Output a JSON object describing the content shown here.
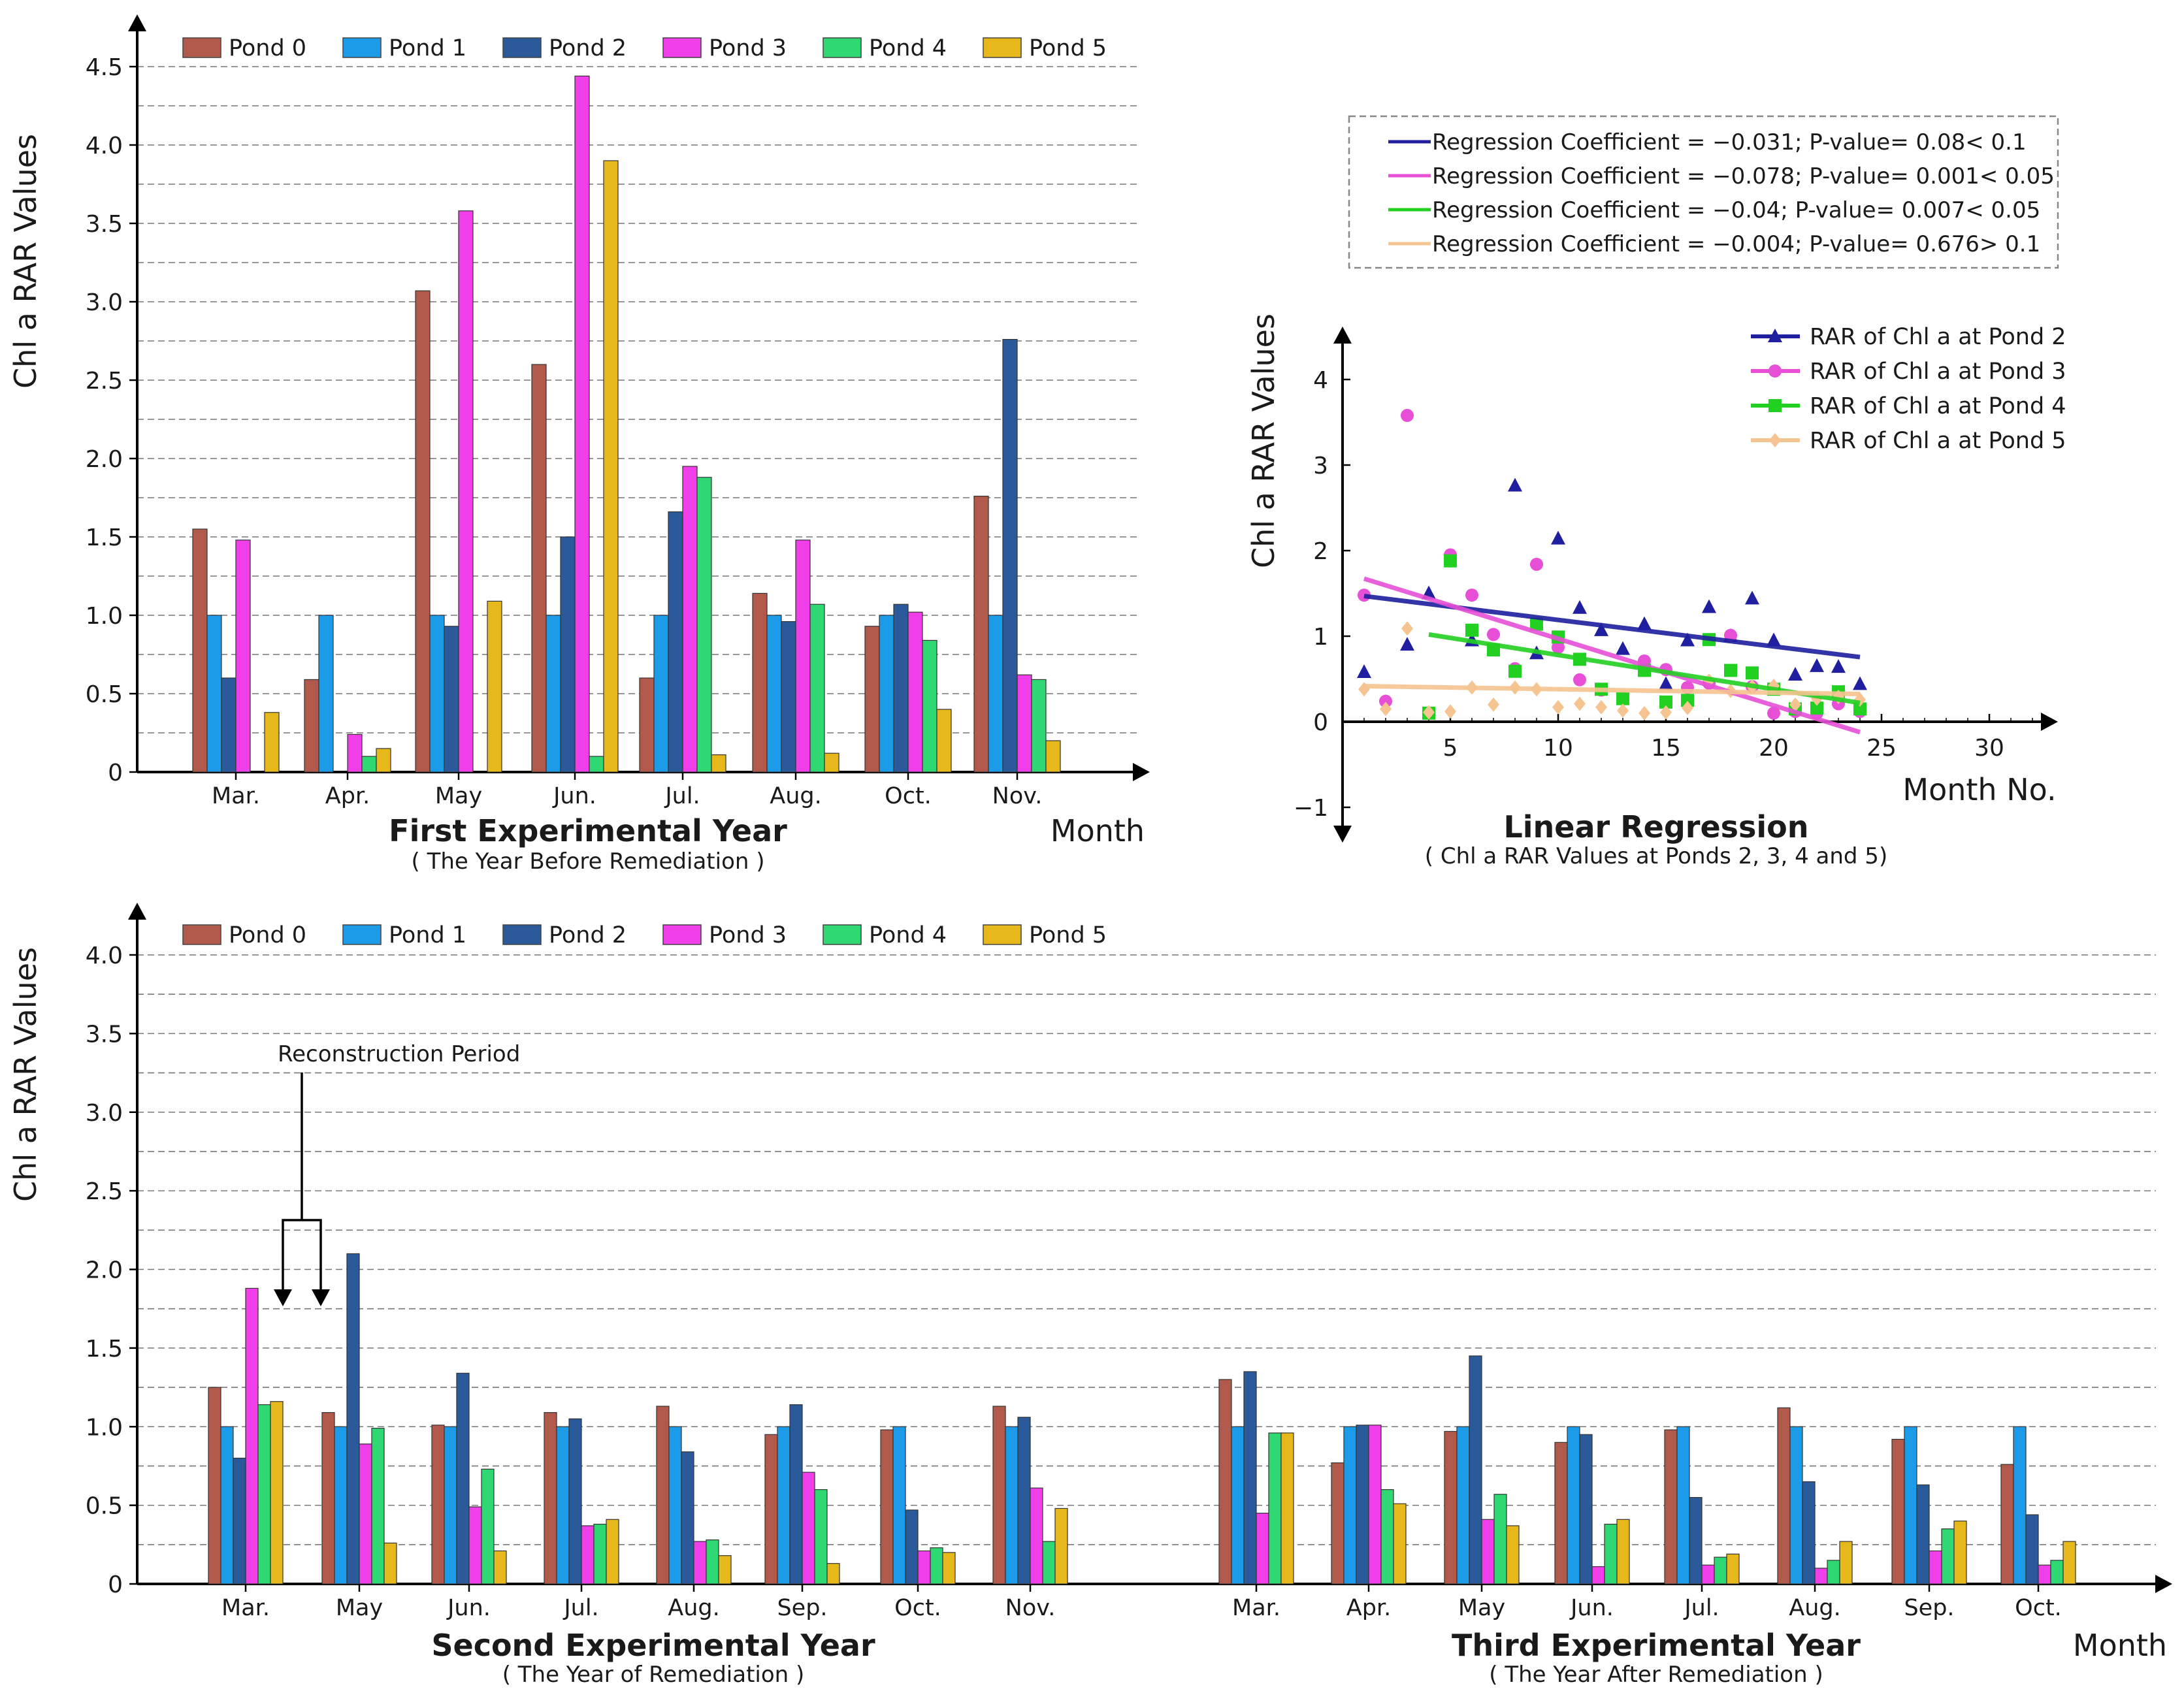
{
  "ponds": [
    {
      "name": "Pond 0",
      "color": "#b15a4c"
    },
    {
      "name": "Pond 1",
      "color": "#1c9be8"
    },
    {
      "name": "Pond 2",
      "color": "#2a5a9a"
    },
    {
      "name": "Pond 3",
      "color": "#f03ee8"
    },
    {
      "name": "Pond 4",
      "color": "#2fd873"
    },
    {
      "name": "Pond 5",
      "color": "#e6b81c"
    }
  ],
  "chart_data": [
    {
      "type": "bar",
      "title": "First Experimental Year",
      "subtitle": "( The Year Before Remediation )",
      "ylabel": "Chl a RAR Values",
      "xlabel": "Month",
      "ylim": [
        0,
        4.5
      ],
      "yticks": [
        "0",
        "0.5",
        "1.0",
        "1.5",
        "2.0",
        "2.5",
        "3.0",
        "3.5",
        "4.0",
        "4.5"
      ],
      "grid": "dashed horizontal",
      "legend": "top",
      "categories": [
        "Mar.",
        "Apr.",
        "May",
        "Jun.",
        "Jul.",
        "Aug.",
        "Oct.",
        "Nov."
      ],
      "series": [
        {
          "name": "Pond 0",
          "values": [
            1.55,
            0.59,
            3.07,
            2.6,
            0.6,
            1.14,
            0.93,
            1.76
          ]
        },
        {
          "name": "Pond 1",
          "values": [
            1.0,
            1.0,
            1.0,
            1.0,
            1.0,
            1.0,
            1.0,
            1.0
          ]
        },
        {
          "name": "Pond 2",
          "values": [
            0.6,
            0,
            0.93,
            1.5,
            1.66,
            0.96,
            1.07,
            2.76
          ]
        },
        {
          "name": "Pond 3",
          "values": [
            1.48,
            0.24,
            3.58,
            4.44,
            1.95,
            1.48,
            1.02,
            0.62
          ]
        },
        {
          "name": "Pond 4",
          "values": [
            0,
            0.1,
            0,
            0.1,
            1.88,
            1.07,
            0.84,
            0.59
          ]
        },
        {
          "name": "Pond 5",
          "values": [
            0.38,
            0.15,
            1.09,
            3.9,
            0.11,
            0.12,
            0.4,
            0.2
          ]
        }
      ]
    },
    {
      "type": "scatter",
      "title": "Linear Regression",
      "subtitle": "( Chl a RAR Values at Ponds 2, 3, 4 and 5)",
      "ylabel": "Chl a RAR Values",
      "xlabel": "Month No.",
      "xlim": [
        0,
        33
      ],
      "ylim": [
        -1,
        4.5
      ],
      "xticks": [
        "5",
        "10",
        "15",
        "20",
        "25",
        "30"
      ],
      "yticks": [
        "−1",
        "0",
        "1",
        "2",
        "3",
        "4"
      ],
      "legend": "top-right",
      "series": [
        {
          "name": "RAR of Chl a at Pond 2",
          "color": "#1f1fa0",
          "marker": "triangle",
          "x": [
            1,
            3,
            4,
            6,
            8,
            9,
            10,
            11,
            12,
            13,
            14,
            15,
            16,
            17,
            18,
            19,
            20,
            21,
            22,
            23,
            24
          ],
          "y": [
            0.58,
            0.9,
            1.5,
            0.95,
            2.76,
            0.8,
            2.14,
            1.33,
            1.07,
            0.85,
            1.14,
            0.44,
            0.95,
            1.34,
            1.0,
            1.44,
            0.95,
            0.55,
            0.65,
            0.64,
            0.44
          ]
        },
        {
          "name": "RAR of Chl a at Pond 3",
          "color": "#e64fd6",
          "marker": "circle",
          "x": [
            1,
            2,
            3,
            5,
            6,
            7,
            8,
            9,
            10,
            11,
            12,
            13,
            14,
            15,
            16,
            17,
            18,
            19,
            20,
            21,
            22,
            23,
            24
          ],
          "y": [
            1.48,
            0.24,
            3.58,
            1.95,
            1.48,
            1.02,
            0.62,
            1.84,
            0.87,
            0.49,
            0.37,
            0.28,
            0.71,
            0.61,
            0.4,
            0.45,
            1.01,
            0.41,
            0.1,
            0.12,
            0.1,
            0.21,
            0.12
          ]
        },
        {
          "name": "RAR of Chl a at Pond 4",
          "color": "#22d022",
          "marker": "square",
          "x": [
            4,
            5,
            6,
            7,
            8,
            9,
            10,
            11,
            12,
            13,
            14,
            15,
            16,
            17,
            18,
            19,
            20,
            21,
            22,
            23,
            24
          ],
          "y": [
            0.1,
            1.88,
            1.07,
            0.84,
            0.59,
            1.14,
            0.99,
            0.73,
            0.38,
            0.27,
            0.6,
            0.23,
            0.25,
            0.96,
            0.6,
            0.57,
            0.38,
            0.15,
            0.16,
            0.35,
            0.15
          ]
        },
        {
          "name": "RAR of Chl a at Pond 5",
          "color": "#f6c490",
          "marker": "diamond",
          "x": [
            1,
            2,
            3,
            4,
            5,
            6,
            7,
            8,
            9,
            10,
            11,
            12,
            13,
            14,
            15,
            16,
            17,
            18,
            19,
            20,
            21,
            22,
            23,
            24
          ],
          "y": [
            0.38,
            0.15,
            1.09,
            0.11,
            0.12,
            0.4,
            0.2,
            0.4,
            0.38,
            0.17,
            0.21,
            0.17,
            0.13,
            0.1,
            0.11,
            0.16,
            0.48,
            0.36,
            0.41,
            0.42,
            0.2,
            0.27,
            0.29,
            0.26
          ]
        }
      ],
      "regression": [
        {
          "color": "#1f1fa0",
          "text": "Regression Coefficient = −0.031;  P-value= 0.08< 0.1",
          "intercept": 1.5,
          "slope": -0.031
        },
        {
          "color": "#e64fd6",
          "text": "Regression Coefficient = −0.078;  P-value= 0.001< 0.05",
          "intercept": 1.75,
          "slope": -0.078
        },
        {
          "color": "#22d022",
          "text": "Regression Coefficient = −0.04;  P-value= 0.007< 0.05",
          "intercept": 1.18,
          "slope": -0.04
        },
        {
          "color": "#f6c490",
          "text": "Regression Coefficient = −0.004;  P-value= 0.676> 0.1",
          "intercept": 0.42,
          "slope": -0.004
        }
      ]
    },
    {
      "type": "bar",
      "title": "Second Experimental Year",
      "subtitle": "( The Year of Remediation )",
      "title2": "Third Experimental Year",
      "subtitle2": "( The Year After Remediation )",
      "ylabel": "Chl a RAR Values",
      "xlabel": "Month",
      "ylim": [
        0,
        4.0
      ],
      "yticks": [
        "0",
        "0.5",
        "1.0",
        "1.5",
        "2.0",
        "2.5",
        "3.0",
        "3.5",
        "4.0"
      ],
      "grid": "dashed horizontal",
      "legend": "top",
      "annotation": "Reconstruction Period",
      "categories": [
        "Mar.",
        "May",
        "Jun.",
        "Jul.",
        "Aug.",
        "Sep.",
        "Oct.",
        "Nov.",
        "Mar.",
        "Apr.",
        "May",
        "Jun.",
        "Jul.",
        "Aug.",
        "Sep.",
        "Oct."
      ],
      "series": [
        {
          "name": "Pond 0",
          "values": [
            1.25,
            1.09,
            1.01,
            1.09,
            1.13,
            0.95,
            0.98,
            1.13,
            1.3,
            0.77,
            0.97,
            0.9,
            0.98,
            1.12,
            0.92,
            0.76
          ]
        },
        {
          "name": "Pond 1",
          "values": [
            1.0,
            1.0,
            1.0,
            1.0,
            1.0,
            1.0,
            1.0,
            1.0,
            1.0,
            1.0,
            1.0,
            1.0,
            1.0,
            1.0,
            1.0,
            1.0
          ]
        },
        {
          "name": "Pond 2",
          "values": [
            0.8,
            2.1,
            1.34,
            1.05,
            0.84,
            1.14,
            0.47,
            1.06,
            1.35,
            1.01,
            1.45,
            0.95,
            0.55,
            0.65,
            0.63,
            0.44
          ]
        },
        {
          "name": "Pond 3",
          "values": [
            1.88,
            0.89,
            0.49,
            0.37,
            0.27,
            0.71,
            0.21,
            0.61,
            0.45,
            1.01,
            0.41,
            0.11,
            0.12,
            0.1,
            0.21,
            0.12
          ]
        },
        {
          "name": "Pond 4",
          "values": [
            1.14,
            0.99,
            0.73,
            0.38,
            0.28,
            0.6,
            0.23,
            0.27,
            0.96,
            0.6,
            0.57,
            0.38,
            0.17,
            0.15,
            0.35,
            0.15
          ]
        },
        {
          "name": "Pond 5",
          "values": [
            1.16,
            0.26,
            0.21,
            0.41,
            0.18,
            0.13,
            0.2,
            0.48,
            0.96,
            0.51,
            0.37,
            0.41,
            0.19,
            0.27,
            0.4,
            0.27
          ]
        }
      ]
    }
  ]
}
